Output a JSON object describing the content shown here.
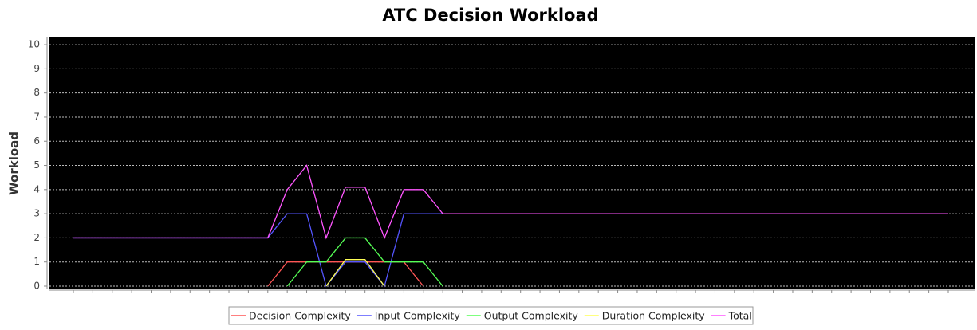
{
  "chart_data": {
    "type": "line",
    "title": "ATC Decision Workload",
    "ylabel": "Workload",
    "categories": [
      null,
      null,
      null,
      null,
      null,
      null,
      null,
      null,
      null,
      null,
      null,
      null,
      null,
      null,
      null,
      null,
      null,
      null,
      null,
      null,
      null,
      null,
      null,
      null,
      null,
      null,
      null,
      null,
      null,
      null,
      null,
      null,
      null,
      null,
      null,
      null,
      null,
      null,
      null,
      null,
      null,
      null,
      null,
      null,
      null,
      null
    ],
    "ylim": [
      0,
      10.3
    ],
    "yticks": [
      0,
      1,
      2,
      3,
      4,
      5,
      6,
      7,
      8,
      9,
      10
    ],
    "grid": true,
    "legend": "bottom",
    "series": [
      {
        "name": "Decision Complexity",
        "color": "#ff5555",
        "values": [
          null,
          null,
          null,
          null,
          null,
          null,
          null,
          null,
          null,
          null,
          0,
          1,
          1,
          1,
          1,
          1,
          1,
          1,
          0,
          null,
          null,
          null,
          null,
          null,
          null,
          null,
          null,
          null,
          null,
          null,
          null,
          null,
          null,
          null,
          null,
          null,
          null,
          null,
          null,
          null,
          null,
          null,
          null,
          null,
          null,
          null
        ]
      },
      {
        "name": "Input Complexity",
        "color": "#5555ff",
        "values": [
          2,
          2,
          2,
          2,
          2,
          2,
          2,
          2,
          2,
          2,
          2,
          3,
          3,
          0,
          1,
          1,
          0,
          3,
          3,
          3,
          3,
          3,
          3,
          3,
          3,
          3,
          3,
          3,
          3,
          3,
          3,
          3,
          3,
          3,
          3,
          3,
          3,
          3,
          3,
          3,
          3,
          3,
          3,
          3,
          3,
          3
        ]
      },
      {
        "name": "Output Complexity",
        "color": "#55ff55",
        "values": [
          null,
          null,
          null,
          null,
          null,
          null,
          null,
          null,
          null,
          null,
          null,
          0,
          1,
          1,
          2,
          2,
          1,
          1,
          1,
          0,
          null,
          null,
          null,
          null,
          null,
          null,
          null,
          null,
          null,
          null,
          null,
          null,
          null,
          null,
          null,
          null,
          null,
          null,
          null,
          null,
          null,
          null,
          null,
          null,
          null,
          null
        ]
      },
      {
        "name": "Duration Complexity",
        "color": "#ffff55",
        "values": [
          null,
          null,
          null,
          null,
          null,
          null,
          null,
          null,
          null,
          null,
          null,
          null,
          null,
          0,
          1.1,
          1.1,
          0,
          null,
          null,
          null,
          null,
          null,
          null,
          null,
          null,
          null,
          null,
          null,
          null,
          null,
          null,
          null,
          null,
          null,
          null,
          null,
          null,
          null,
          null,
          null,
          null,
          null,
          null,
          null,
          null,
          null
        ]
      },
      {
        "name": "Total",
        "color": "#ff55ff",
        "values": [
          2,
          2,
          2,
          2,
          2,
          2,
          2,
          2,
          2,
          2,
          2,
          4,
          5,
          2,
          4.1,
          4.1,
          2,
          4,
          4,
          3,
          3,
          3,
          3,
          3,
          3,
          3,
          3,
          3,
          3,
          3,
          3,
          3,
          3,
          3,
          3,
          3,
          3,
          3,
          3,
          3,
          3,
          3,
          3,
          3,
          3,
          3
        ]
      }
    ]
  }
}
